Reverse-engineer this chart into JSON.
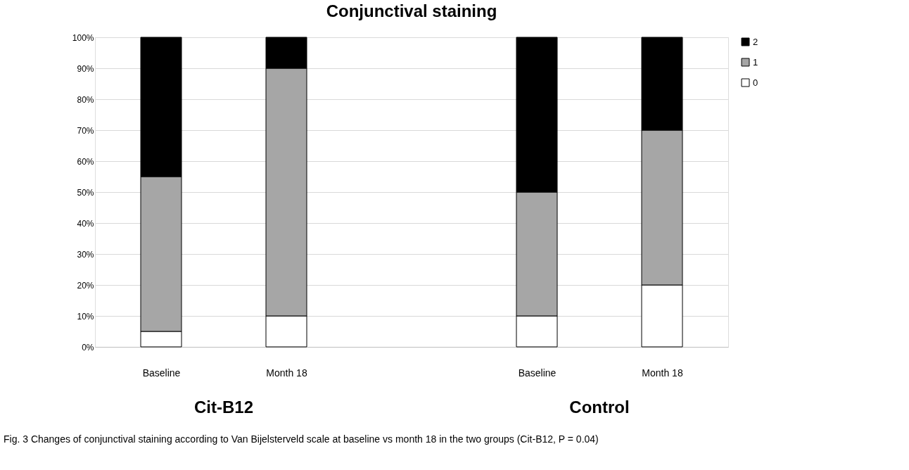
{
  "chart_data": {
    "type": "bar",
    "title": "Conjunctival staining",
    "stacked": true,
    "categories": [
      "Baseline",
      "Month 18",
      null,
      "Baseline",
      "Month 18"
    ],
    "series": [
      {
        "name": "0",
        "color": "#ffffff",
        "values": [
          5,
          10,
          null,
          10,
          20
        ]
      },
      {
        "name": "1",
        "color": "#a6a6a6",
        "values": [
          50,
          80,
          null,
          40,
          50
        ]
      },
      {
        "name": "2",
        "color": "#000000",
        "values": [
          45,
          10,
          null,
          50,
          30
        ]
      }
    ],
    "ylim": [
      0,
      100
    ],
    "yticks": [
      {
        "value": 0,
        "label": "0%"
      },
      {
        "value": 10,
        "label": "10%"
      },
      {
        "value": 20,
        "label": "20%"
      },
      {
        "value": 30,
        "label": "30%"
      },
      {
        "value": 40,
        "label": "40%"
      },
      {
        "value": 50,
        "label": "50%"
      },
      {
        "value": 60,
        "label": "60%"
      },
      {
        "value": 70,
        "label": "70%"
      },
      {
        "value": 80,
        "label": "80%"
      },
      {
        "value": 90,
        "label": "90%"
      },
      {
        "value": 100,
        "label": "100%"
      }
    ],
    "grid": "y",
    "legend": "right",
    "annotations": [
      "Cit-B12",
      "Control",
      "Fig. 3 Changes of conjunctival staining according to Van Bijelsterveld scale at baseline vs month 18 in the two groups (Cit-B12, P = 0.04)"
    ]
  }
}
